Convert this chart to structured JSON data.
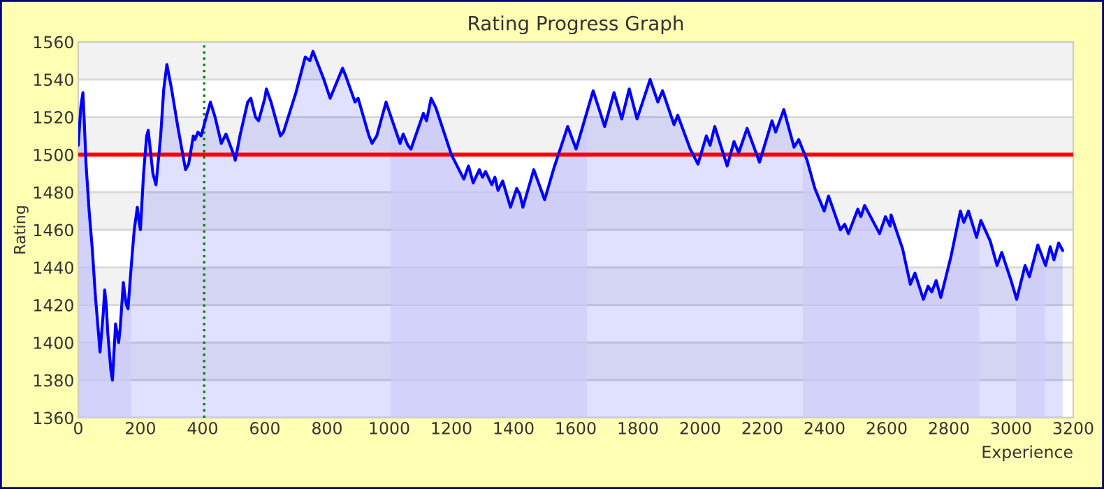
{
  "chart_data": {
    "type": "area",
    "title": "Rating Progress Graph",
    "xlabel": "Experience",
    "ylabel": "Rating",
    "xlim": [
      0,
      3200
    ],
    "xticks": [
      0,
      200,
      400,
      600,
      800,
      1000,
      1200,
      1400,
      1600,
      1800,
      2000,
      2200,
      2400,
      2600,
      2800,
      3000,
      3200
    ],
    "ylim": [
      1360,
      1560
    ],
    "yticks": [
      1360,
      1380,
      1400,
      1420,
      1440,
      1460,
      1480,
      1500,
      1520,
      1540,
      1560
    ],
    "grid": "y",
    "legend": false,
    "marker": "none",
    "line_style": "solid",
    "series": [
      {
        "color": "#0000ff",
        "x": [
          0,
          8,
          15,
          20,
          25,
          35,
          45,
          55,
          65,
          70,
          80,
          85,
          90,
          95,
          105,
          110,
          115,
          120,
          125,
          130,
          135,
          145,
          150,
          155,
          160,
          170,
          180,
          190,
          195,
          200,
          210,
          220,
          225,
          240,
          250,
          265,
          275,
          285,
          300,
          320,
          345,
          355,
          370,
          375,
          385,
          395,
          415,
          425,
          440,
          460,
          475,
          500,
          505,
          520,
          545,
          555,
          570,
          580,
          600,
          605,
          620,
          650,
          660,
          700,
          730,
          745,
          755,
          790,
          810,
          850,
          860,
          890,
          900,
          935,
          945,
          960,
          990,
          1000,
          1035,
          1045,
          1060,
          1070,
          1110,
          1120,
          1135,
          1150,
          1200,
          1240,
          1255,
          1270,
          1290,
          1300,
          1310,
          1330,
          1340,
          1350,
          1365,
          1390,
          1410,
          1420,
          1430,
          1465,
          1500,
          1530,
          1574,
          1601,
          1656,
          1693,
          1723,
          1748,
          1772,
          1797,
          1839,
          1864,
          1879,
          1916,
          1928,
          1968,
          1993,
          2020,
          2032,
          2047,
          2087,
          2109,
          2124,
          2151,
          2191,
          2231,
          2243,
          2269,
          2302,
          2317,
          2344,
          2369,
          2399,
          2413,
          2451,
          2465,
          2477,
          2507,
          2517,
          2529,
          2577,
          2596,
          2611,
          2614,
          2651,
          2676,
          2691,
          2718,
          2733,
          2745,
          2759,
          2774,
          2807,
          2837,
          2848,
          2863,
          2889,
          2903,
          2933,
          2955,
          2970,
          3000,
          3018,
          3045,
          3059,
          3086,
          3111,
          3126,
          3138,
          3153,
          3166
        ],
        "values": [
          1505,
          1525,
          1533,
          1515,
          1495,
          1470,
          1450,
          1425,
          1405,
          1395,
          1415,
          1428,
          1420,
          1405,
          1385,
          1380,
          1395,
          1410,
          1405,
          1400,
          1408,
          1432,
          1425,
          1420,
          1418,
          1440,
          1460,
          1472,
          1465,
          1460,
          1490,
          1510,
          1513,
          1490,
          1484,
          1510,
          1535,
          1548,
          1535,
          1515,
          1492,
          1495,
          1510,
          1508,
          1512,
          1510,
          1522,
          1528,
          1520,
          1506,
          1511,
          1500,
          1497,
          1510,
          1528,
          1530,
          1520,
          1518,
          1530,
          1535,
          1528,
          1510,
          1512,
          1533,
          1552,
          1550,
          1555,
          1540,
          1530,
          1546,
          1542,
          1528,
          1530,
          1510,
          1506,
          1510,
          1528,
          1523,
          1506,
          1511,
          1505,
          1503,
          1522,
          1518,
          1530,
          1525,
          1500,
          1487,
          1494,
          1485,
          1492,
          1488,
          1491,
          1484,
          1488,
          1481,
          1486,
          1472,
          1482,
          1479,
          1472,
          1492,
          1476,
          1493,
          1515,
          1503,
          1534,
          1515,
          1533,
          1519,
          1535,
          1519,
          1540,
          1528,
          1534,
          1516,
          1521,
          1503,
          1495,
          1510,
          1505,
          1515,
          1494,
          1507,
          1501,
          1514,
          1496,
          1518,
          1512,
          1524,
          1504,
          1508,
          1497,
          1482,
          1470,
          1478,
          1460,
          1463,
          1458,
          1471,
          1467,
          1473,
          1458,
          1467,
          1462,
          1468,
          1450,
          1431,
          1437,
          1423,
          1430,
          1427,
          1433,
          1424,
          1446,
          1470,
          1464,
          1470,
          1456,
          1465,
          1454,
          1441,
          1448,
          1433,
          1423,
          1441,
          1435,
          1452,
          1441,
          1451,
          1444,
          1453,
          1449
        ]
      }
    ],
    "ref_lines": [
      {
        "axis": "y",
        "value": 1500,
        "color": "#ff0000",
        "line_style": "solid"
      },
      {
        "axis": "x",
        "value": 405,
        "color": "#008000",
        "line_style": "dotted"
      }
    ],
    "bands": [
      {
        "axis": "x",
        "from": 0,
        "to": 170,
        "color": "#ccccf8"
      },
      {
        "axis": "x",
        "from": 1005,
        "to": 1636,
        "color": "#ccccf8"
      },
      {
        "axis": "x",
        "from": 2330,
        "to": 2898,
        "color": "#ccccf8"
      },
      {
        "axis": "x",
        "from": 3016,
        "to": 3110,
        "color": "#ccccf8"
      }
    ]
  }
}
